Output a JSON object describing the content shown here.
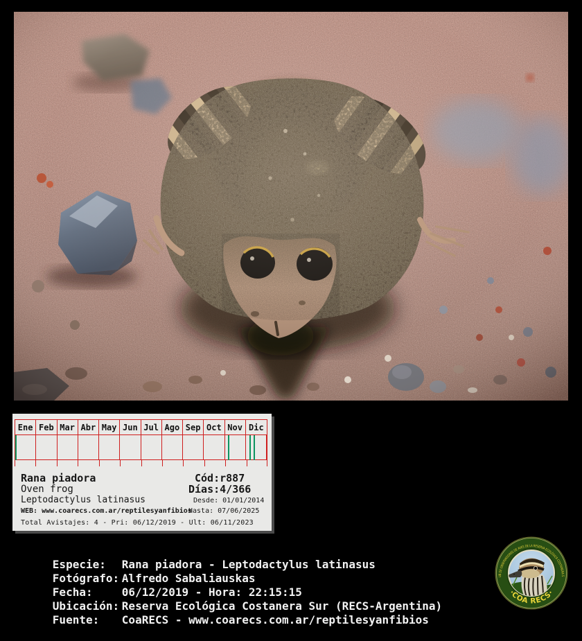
{
  "photo": {
    "description": "Night flash close-up photo of a small brown frog (Leptodactylus latinasus) sitting on pinkish sandy ground with scattered grey and orange pebbles, casting a dark shadow"
  },
  "calendar": {
    "months": [
      "Ene",
      "Feb",
      "Mar",
      "Abr",
      "May",
      "Jun",
      "Jul",
      "Ago",
      "Sep",
      "Oct",
      "Nov",
      "Dic"
    ],
    "sightings": [
      {
        "month": 1,
        "day": 1
      },
      {
        "month": 11,
        "day": 6
      },
      {
        "month": 12,
        "day": 6
      },
      {
        "month": 12,
        "day": 13
      }
    ],
    "grid_color": "#cf1d1d",
    "mark_color": "#0d9460"
  },
  "species_panel": {
    "common_name": "Rana piadora",
    "english_name": "Oven frog",
    "scientific_name": "Leptodactylus latinasus",
    "code": "Cód:r887",
    "days": "Días:4/366",
    "desde": "Desde: 01/01/2014",
    "hasta": "Hasta: 07/06/2025",
    "web_line": "WEB: www.coarecs.com.ar/reptilesyanfibios",
    "total_line": "Total Avistajes: 4 - Pri: 06/12/2019 - Ult: 06/11/2023",
    "scientific_color": "#35a46f",
    "web_color": "#cc2424"
  },
  "metadata": {
    "rows": [
      {
        "label": "Especie:",
        "value": "Rana piadora - Leptodactylus latinasus"
      },
      {
        "label": "Fotógrafo:",
        "value": "Alfredo Sabaliauskas"
      },
      {
        "label": "Fecha:",
        "value": "06/12/2019 - Hora: 22:15:15"
      },
      {
        "label": "Ubicación:",
        "value": "Reserva Ecológica Costanera Sur (RECS-Argentina)"
      },
      {
        "label": "Fuente:",
        "value": "CoaRECS - www.coarecs.com.ar/reptilesyanfibios"
      }
    ]
  },
  "logo": {
    "ring_text": "CLUB DE OBSERVADORES DE AVES DE LA RESERVA ECOLÓGICA COSTANERA SUR",
    "bottom_text": "·COA RECS·",
    "ring_color": "#274e13",
    "text_color": "#e0cc3a"
  }
}
